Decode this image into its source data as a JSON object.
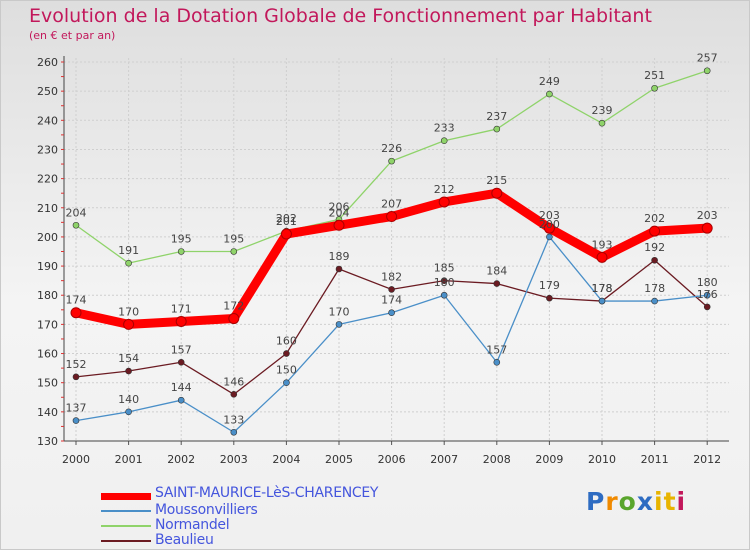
{
  "title": "Evolution de la Dotation Globale de Fonctionnement par Habitant",
  "subtitle": "(en € et par an)",
  "logo_text": "Proxiti",
  "chart_data": {
    "type": "line",
    "x": [
      "2000",
      "2001",
      "2002",
      "2003",
      "2004",
      "2005",
      "2006",
      "2007",
      "2008",
      "2009",
      "2010",
      "2011",
      "2012"
    ],
    "ylim": [
      130,
      260
    ],
    "yticks": [
      130,
      140,
      150,
      160,
      170,
      180,
      190,
      200,
      210,
      220,
      230,
      240,
      250,
      260
    ],
    "grid": true,
    "legend_position": "bottom",
    "series": [
      {
        "name": "SAINT-MAURICE-LèS-CHARENCEY",
        "color": "#ff0000",
        "values": [
          174,
          170,
          171,
          172,
          201,
          204,
          207,
          212,
          215,
          203,
          193,
          202,
          203
        ]
      },
      {
        "name": "Moussonvilliers",
        "color": "#4a8fc8",
        "values": [
          137,
          140,
          144,
          133,
          150,
          170,
          174,
          180,
          157,
          200,
          178,
          178,
          180
        ]
      },
      {
        "name": "Normandel",
        "color": "#8fd36a",
        "values": [
          204,
          191,
          195,
          195,
          202,
          206,
          226,
          233,
          237,
          249,
          239,
          251,
          257
        ]
      },
      {
        "name": "Beaulieu",
        "color": "#6b1b22",
        "values": [
          152,
          154,
          157,
          146,
          160,
          189,
          182,
          185,
          184,
          179,
          178,
          192,
          176
        ]
      }
    ]
  }
}
